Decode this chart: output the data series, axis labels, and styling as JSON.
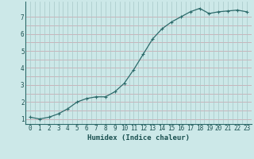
{
  "x": [
    0,
    1,
    2,
    3,
    4,
    5,
    6,
    7,
    8,
    9,
    10,
    11,
    12,
    13,
    14,
    15,
    16,
    17,
    18,
    19,
    20,
    21,
    22,
    23
  ],
  "y": [
    1.1,
    1.0,
    1.1,
    1.3,
    1.6,
    2.0,
    2.2,
    2.3,
    2.3,
    2.6,
    3.1,
    3.9,
    4.8,
    5.7,
    6.3,
    6.7,
    7.0,
    7.3,
    7.5,
    7.2,
    7.3,
    7.35,
    7.4,
    7.3
  ],
  "line_color": "#2d6b6b",
  "marker": "+",
  "marker_size": 3.5,
  "bg_color": "#cce8e8",
  "grid_color_h": "#c8a0a8",
  "grid_color_v": "#a8c8c8",
  "xlabel": "Humidex (Indice chaleur)",
  "xlabel_fontsize": 6.5,
  "xlabel_color": "#1a5050",
  "tick_label_color": "#1a5050",
  "tick_fontsize": 5.5,
  "ylim": [
    0.7,
    7.9
  ],
  "xlim": [
    -0.5,
    23.5
  ],
  "yticks": [
    1,
    2,
    3,
    4,
    5,
    6,
    7
  ],
  "xticks": [
    0,
    1,
    2,
    3,
    4,
    5,
    6,
    7,
    8,
    9,
    10,
    11,
    12,
    13,
    14,
    15,
    16,
    17,
    18,
    19,
    20,
    21,
    22,
    23
  ],
  "linewidth": 0.9
}
